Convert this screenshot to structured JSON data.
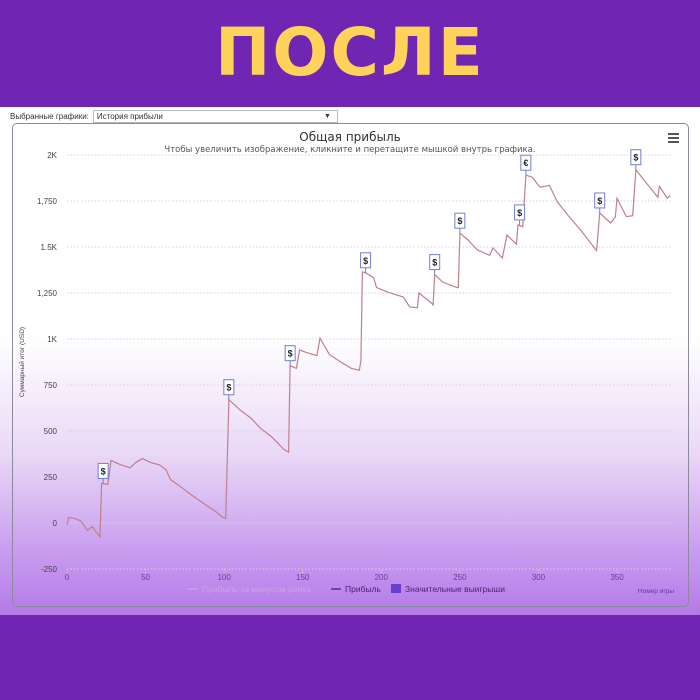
{
  "headline": "ПОСЛЕ",
  "toolbar": {
    "label": "Выбранные графики:",
    "selected": "История прибыли"
  },
  "menu_icon": "hamburger-menu-icon",
  "colors": {
    "background": "#7025b3",
    "headline": "#ffd35a",
    "line": "#c0808a",
    "marker_border": "#6f7fd6",
    "legend_marker": "#6a3fd0"
  },
  "chart_data": {
    "type": "line",
    "title": "Общая прибыль",
    "subtitle": "Чтобы увеличить изображение, кликните и перетащите мышкой внутрь графика.",
    "xlabel": "Номер игры",
    "ylabel": "Суммарный итог (USD)",
    "xlim": [
      0,
      385
    ],
    "ylim": [
      -250,
      2000
    ],
    "xticks": [
      0,
      50,
      100,
      150,
      200,
      250,
      300,
      350
    ],
    "xtick_labels": [
      "0",
      "50",
      "100",
      "150",
      "200",
      "250",
      "300",
      "350"
    ],
    "yticks": [
      -250,
      0,
      250,
      500,
      750,
      1000,
      1250,
      1500,
      1750,
      2000
    ],
    "ytick_labels": [
      "-250",
      "0",
      "250",
      "500",
      "750",
      "1K",
      "1,250",
      "1.5K",
      "1,750",
      "2K"
    ],
    "grid": true,
    "legend": {
      "position": "bottom",
      "items": [
        "Прибыль за минусом рейка",
        "Прибыль",
        "Значительные выигрыши"
      ]
    },
    "series": [
      {
        "name": "Прибыль",
        "points": [
          [
            0,
            -10
          ],
          [
            1,
            30
          ],
          [
            5,
            25
          ],
          [
            9,
            10
          ],
          [
            13,
            -40
          ],
          [
            16,
            -20
          ],
          [
            21,
            -75
          ],
          [
            22,
            215
          ],
          [
            26,
            210
          ],
          [
            28,
            340
          ],
          [
            33,
            320
          ],
          [
            40,
            300
          ],
          [
            44,
            330
          ],
          [
            48,
            350
          ],
          [
            53,
            330
          ],
          [
            59,
            315
          ],
          [
            63,
            290
          ],
          [
            66,
            235
          ],
          [
            72,
            200
          ],
          [
            78,
            160
          ],
          [
            88,
            100
          ],
          [
            95,
            60
          ],
          [
            99,
            30
          ],
          [
            101,
            25
          ],
          [
            103,
            670
          ],
          [
            110,
            615
          ],
          [
            117,
            570
          ],
          [
            123,
            515
          ],
          [
            130,
            470
          ],
          [
            138,
            400
          ],
          [
            141,
            385
          ],
          [
            142,
            855
          ],
          [
            146,
            840
          ],
          [
            148,
            940
          ],
          [
            153,
            925
          ],
          [
            159,
            910
          ],
          [
            161,
            1005
          ],
          [
            167,
            915
          ],
          [
            176,
            865
          ],
          [
            181,
            840
          ],
          [
            186,
            830
          ],
          [
            187,
            880
          ],
          [
            188,
            1365
          ],
          [
            190,
            1360
          ],
          [
            195,
            1335
          ],
          [
            197,
            1280
          ],
          [
            204,
            1255
          ],
          [
            214,
            1228
          ],
          [
            218,
            1175
          ],
          [
            223,
            1170
          ],
          [
            224,
            1250
          ],
          [
            232,
            1195
          ],
          [
            233,
            1185
          ],
          [
            234,
            1350
          ],
          [
            239,
            1310
          ],
          [
            248,
            1280
          ],
          [
            249,
            1280
          ],
          [
            250,
            1575
          ],
          [
            255,
            1540
          ],
          [
            261,
            1485
          ],
          [
            269,
            1455
          ],
          [
            271,
            1495
          ],
          [
            277,
            1440
          ],
          [
            280,
            1565
          ],
          [
            286,
            1515
          ],
          [
            287,
            1620
          ],
          [
            290,
            1610
          ],
          [
            292,
            1890
          ],
          [
            296,
            1880
          ],
          [
            301,
            1825
          ],
          [
            307,
            1835
          ],
          [
            312,
            1745
          ],
          [
            320,
            1660
          ],
          [
            327,
            1590
          ],
          [
            337,
            1480
          ],
          [
            339,
            1685
          ],
          [
            346,
            1630
          ],
          [
            349,
            1665
          ],
          [
            350,
            1765
          ],
          [
            356,
            1665
          ],
          [
            360,
            1670
          ],
          [
            362,
            1920
          ],
          [
            368,
            1855
          ],
          [
            376,
            1770
          ],
          [
            377,
            1830
          ],
          [
            382,
            1765
          ],
          [
            384,
            1780
          ]
        ]
      }
    ],
    "markers": [
      {
        "x": 23,
        "y": 215,
        "label": "$"
      },
      {
        "x": 103,
        "y": 670,
        "label": "$"
      },
      {
        "x": 142,
        "y": 855,
        "label": "$"
      },
      {
        "x": 190,
        "y": 1360,
        "label": "$"
      },
      {
        "x": 234,
        "y": 1350,
        "label": "$"
      },
      {
        "x": 250,
        "y": 1575,
        "label": "$"
      },
      {
        "x": 288,
        "y": 1620,
        "label": "$"
      },
      {
        "x": 292,
        "y": 1890,
        "label": "€"
      },
      {
        "x": 339,
        "y": 1685,
        "label": "$"
      },
      {
        "x": 362,
        "y": 1920,
        "label": "$"
      }
    ]
  }
}
